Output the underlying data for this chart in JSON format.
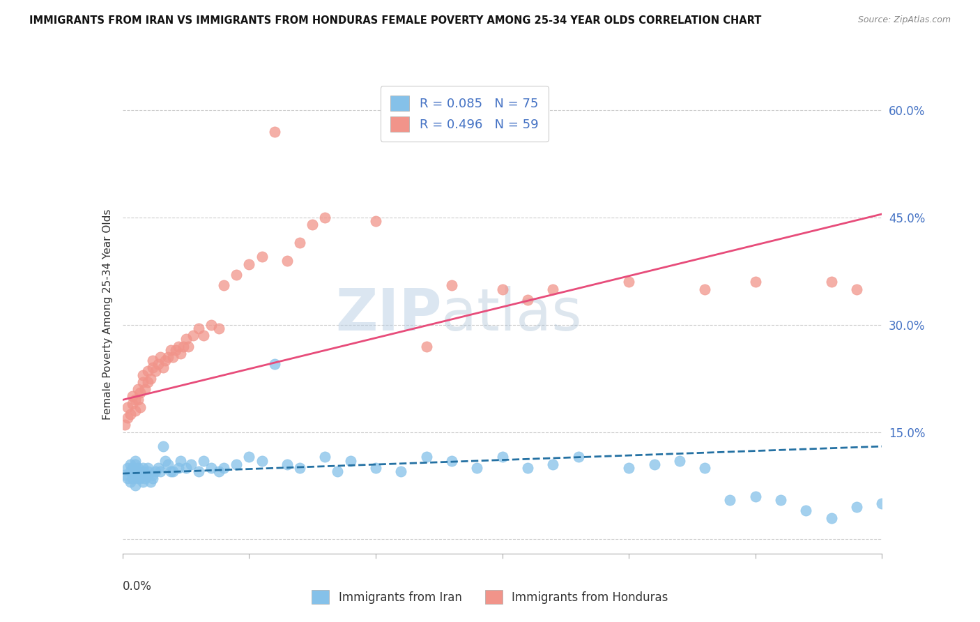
{
  "title": "IMMIGRANTS FROM IRAN VS IMMIGRANTS FROM HONDURAS FEMALE POVERTY AMONG 25-34 YEAR OLDS CORRELATION CHART",
  "source": "Source: ZipAtlas.com",
  "ylabel": "Female Poverty Among 25-34 Year Olds",
  "yticks": [
    0.0,
    0.15,
    0.3,
    0.45,
    0.6
  ],
  "ytick_labels": [
    "",
    "15.0%",
    "30.0%",
    "45.0%",
    "60.0%"
  ],
  "xlim": [
    0.0,
    0.3
  ],
  "ylim": [
    -0.02,
    0.65
  ],
  "iran_color": "#85c1e9",
  "honduras_color": "#f1948a",
  "iran_line_color": "#2471a3",
  "honduras_line_color": "#e74c7a",
  "watermark_zip": "ZIP",
  "watermark_atlas": "atlas",
  "iran_scatter_x": [
    0.001,
    0.002,
    0.002,
    0.003,
    0.003,
    0.003,
    0.004,
    0.004,
    0.004,
    0.005,
    0.005,
    0.005,
    0.005,
    0.006,
    0.006,
    0.006,
    0.007,
    0.007,
    0.008,
    0.008,
    0.008,
    0.009,
    0.009,
    0.01,
    0.01,
    0.01,
    0.011,
    0.012,
    0.012,
    0.013,
    0.014,
    0.015,
    0.016,
    0.017,
    0.018,
    0.019,
    0.02,
    0.022,
    0.023,
    0.025,
    0.027,
    0.03,
    0.032,
    0.035,
    0.038,
    0.04,
    0.045,
    0.05,
    0.055,
    0.06,
    0.065,
    0.07,
    0.08,
    0.085,
    0.09,
    0.1,
    0.11,
    0.12,
    0.13,
    0.14,
    0.15,
    0.16,
    0.17,
    0.18,
    0.2,
    0.21,
    0.22,
    0.23,
    0.24,
    0.25,
    0.26,
    0.27,
    0.28,
    0.29,
    0.3
  ],
  "iran_scatter_y": [
    0.09,
    0.1,
    0.085,
    0.095,
    0.08,
    0.105,
    0.09,
    0.1,
    0.085,
    0.095,
    0.075,
    0.105,
    0.11,
    0.085,
    0.095,
    0.1,
    0.09,
    0.085,
    0.095,
    0.1,
    0.08,
    0.09,
    0.085,
    0.095,
    0.1,
    0.09,
    0.08,
    0.085,
    0.09,
    0.095,
    0.1,
    0.095,
    0.13,
    0.11,
    0.105,
    0.095,
    0.095,
    0.1,
    0.11,
    0.1,
    0.105,
    0.095,
    0.11,
    0.1,
    0.095,
    0.1,
    0.105,
    0.115,
    0.11,
    0.245,
    0.105,
    0.1,
    0.115,
    0.095,
    0.11,
    0.1,
    0.095,
    0.115,
    0.11,
    0.1,
    0.115,
    0.1,
    0.105,
    0.115,
    0.1,
    0.105,
    0.11,
    0.1,
    0.055,
    0.06,
    0.055,
    0.04,
    0.03,
    0.045,
    0.05
  ],
  "honduras_scatter_x": [
    0.001,
    0.002,
    0.002,
    0.003,
    0.004,
    0.004,
    0.005,
    0.005,
    0.006,
    0.006,
    0.007,
    0.007,
    0.008,
    0.008,
    0.009,
    0.01,
    0.01,
    0.011,
    0.012,
    0.012,
    0.013,
    0.014,
    0.015,
    0.016,
    0.017,
    0.018,
    0.019,
    0.02,
    0.021,
    0.022,
    0.023,
    0.024,
    0.025,
    0.026,
    0.028,
    0.03,
    0.032,
    0.035,
    0.038,
    0.04,
    0.045,
    0.05,
    0.055,
    0.06,
    0.065,
    0.07,
    0.075,
    0.08,
    0.1,
    0.12,
    0.13,
    0.15,
    0.16,
    0.17,
    0.2,
    0.23,
    0.25,
    0.28,
    0.29
  ],
  "honduras_scatter_y": [
    0.16,
    0.17,
    0.185,
    0.175,
    0.19,
    0.2,
    0.18,
    0.195,
    0.21,
    0.195,
    0.205,
    0.185,
    0.22,
    0.23,
    0.21,
    0.22,
    0.235,
    0.225,
    0.24,
    0.25,
    0.235,
    0.245,
    0.255,
    0.24,
    0.25,
    0.255,
    0.265,
    0.255,
    0.265,
    0.27,
    0.26,
    0.27,
    0.28,
    0.27,
    0.285,
    0.295,
    0.285,
    0.3,
    0.295,
    0.355,
    0.37,
    0.385,
    0.395,
    0.57,
    0.39,
    0.415,
    0.44,
    0.45,
    0.445,
    0.27,
    0.355,
    0.35,
    0.335,
    0.35,
    0.36,
    0.35,
    0.36,
    0.36,
    0.35
  ],
  "iran_line_x": [
    0.0,
    0.3
  ],
  "iran_line_y": [
    0.092,
    0.13
  ],
  "honduras_line_x": [
    0.0,
    0.3
  ],
  "honduras_line_y": [
    0.195,
    0.455
  ]
}
